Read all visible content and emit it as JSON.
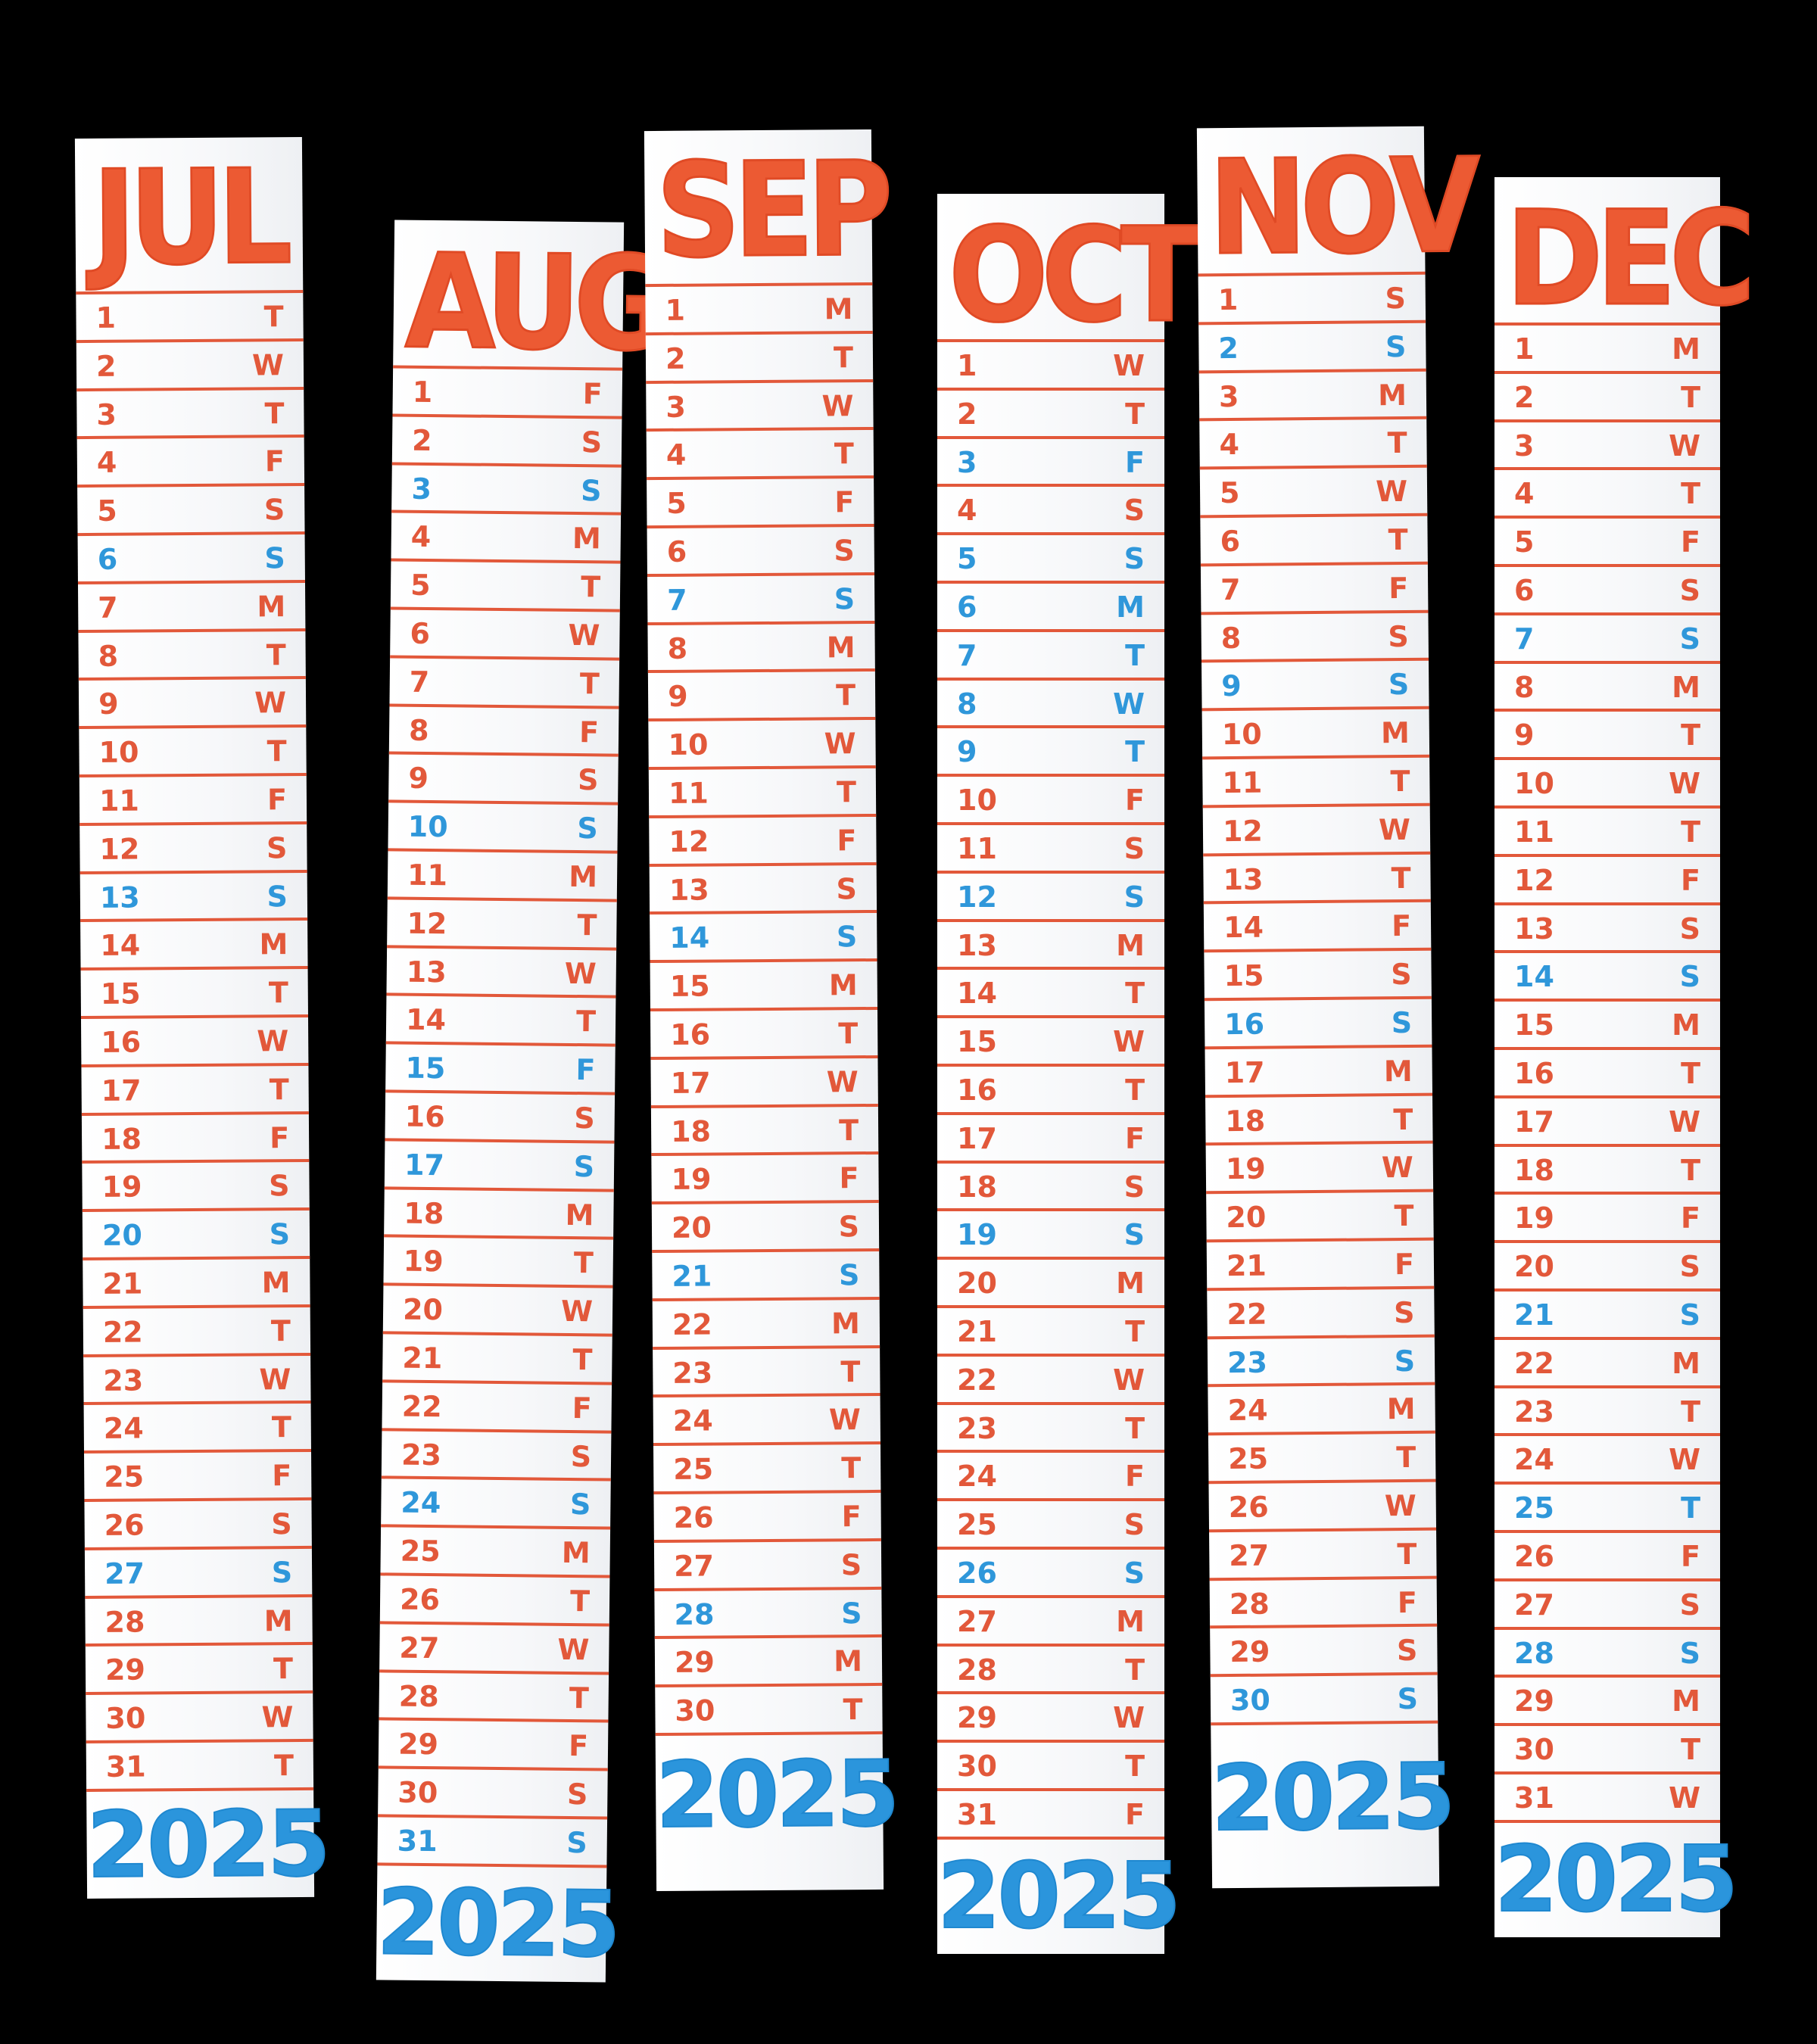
{
  "strips": [
    {
      "month": "JUL",
      "year": "2025",
      "days": [
        {
          "day": "1",
          "dow": "T"
        },
        {
          "day": "2",
          "dow": "W"
        },
        {
          "day": "3",
          "dow": "T"
        },
        {
          "day": "4",
          "dow": "F"
        },
        {
          "day": "5",
          "dow": "S"
        },
        {
          "day": "6",
          "dow": "S"
        },
        {
          "day": "7",
          "dow": "M"
        },
        {
          "day": "8",
          "dow": "T"
        },
        {
          "day": "9",
          "dow": "W"
        },
        {
          "day": "10",
          "dow": "T"
        },
        {
          "day": "11",
          "dow": "F"
        },
        {
          "day": "12",
          "dow": "S"
        },
        {
          "day": "13",
          "dow": "S"
        },
        {
          "day": "14",
          "dow": "M"
        },
        {
          "day": "15",
          "dow": "T"
        },
        {
          "day": "16",
          "dow": "W"
        },
        {
          "day": "17",
          "dow": "T"
        },
        {
          "day": "18",
          "dow": "F"
        },
        {
          "day": "19",
          "dow": "S"
        },
        {
          "day": "20",
          "dow": "S"
        },
        {
          "day": "21",
          "dow": "M"
        },
        {
          "day": "22",
          "dow": "T"
        },
        {
          "day": "23",
          "dow": "W"
        },
        {
          "day": "24",
          "dow": "T"
        },
        {
          "day": "25",
          "dow": "F"
        },
        {
          "day": "26",
          "dow": "S"
        },
        {
          "day": "27",
          "dow": "S"
        },
        {
          "day": "28",
          "dow": "M"
        },
        {
          "day": "29",
          "dow": "T"
        },
        {
          "day": "30",
          "dow": "W"
        },
        {
          "day": "31",
          "dow": "T"
        }
      ],
      "blue_days": [
        "6",
        "13",
        "20",
        "27"
      ]
    },
    {
      "month": "AUG",
      "year": "2025",
      "days": [
        {
          "day": "1",
          "dow": "F"
        },
        {
          "day": "2",
          "dow": "S"
        },
        {
          "day": "3",
          "dow": "S"
        },
        {
          "day": "4",
          "dow": "M"
        },
        {
          "day": "5",
          "dow": "T"
        },
        {
          "day": "6",
          "dow": "W"
        },
        {
          "day": "7",
          "dow": "T"
        },
        {
          "day": "8",
          "dow": "F"
        },
        {
          "day": "9",
          "dow": "S"
        },
        {
          "day": "10",
          "dow": "S"
        },
        {
          "day": "11",
          "dow": "M"
        },
        {
          "day": "12",
          "dow": "T"
        },
        {
          "day": "13",
          "dow": "W"
        },
        {
          "day": "14",
          "dow": "T"
        },
        {
          "day": "15",
          "dow": "F"
        },
        {
          "day": "16",
          "dow": "S"
        },
        {
          "day": "17",
          "dow": "S"
        },
        {
          "day": "18",
          "dow": "M"
        },
        {
          "day": "19",
          "dow": "T"
        },
        {
          "day": "20",
          "dow": "W"
        },
        {
          "day": "21",
          "dow": "T"
        },
        {
          "day": "22",
          "dow": "F"
        },
        {
          "day": "23",
          "dow": "S"
        },
        {
          "day": "24",
          "dow": "S"
        },
        {
          "day": "25",
          "dow": "M"
        },
        {
          "day": "26",
          "dow": "T"
        },
        {
          "day": "27",
          "dow": "W"
        },
        {
          "day": "28",
          "dow": "T"
        },
        {
          "day": "29",
          "dow": "F"
        },
        {
          "day": "30",
          "dow": "S"
        },
        {
          "day": "31",
          "dow": "S"
        }
      ],
      "blue_days": [
        "3",
        "10",
        "15",
        "17",
        "24",
        "31"
      ]
    },
    {
      "month": "SEP",
      "year": "2025",
      "days": [
        {
          "day": "1",
          "dow": "M"
        },
        {
          "day": "2",
          "dow": "T"
        },
        {
          "day": "3",
          "dow": "W"
        },
        {
          "day": "4",
          "dow": "T"
        },
        {
          "day": "5",
          "dow": "F"
        },
        {
          "day": "6",
          "dow": "S"
        },
        {
          "day": "7",
          "dow": "S"
        },
        {
          "day": "8",
          "dow": "M"
        },
        {
          "day": "9",
          "dow": "T"
        },
        {
          "day": "10",
          "dow": "W"
        },
        {
          "day": "11",
          "dow": "T"
        },
        {
          "day": "12",
          "dow": "F"
        },
        {
          "day": "13",
          "dow": "S"
        },
        {
          "day": "14",
          "dow": "S"
        },
        {
          "day": "15",
          "dow": "M"
        },
        {
          "day": "16",
          "dow": "T"
        },
        {
          "day": "17",
          "dow": "W"
        },
        {
          "day": "18",
          "dow": "T"
        },
        {
          "day": "19",
          "dow": "F"
        },
        {
          "day": "20",
          "dow": "S"
        },
        {
          "day": "21",
          "dow": "S"
        },
        {
          "day": "22",
          "dow": "M"
        },
        {
          "day": "23",
          "dow": "T"
        },
        {
          "day": "24",
          "dow": "W"
        },
        {
          "day": "25",
          "dow": "T"
        },
        {
          "day": "26",
          "dow": "F"
        },
        {
          "day": "27",
          "dow": "S"
        },
        {
          "day": "28",
          "dow": "S"
        },
        {
          "day": "29",
          "dow": "M"
        },
        {
          "day": "30",
          "dow": "T"
        }
      ],
      "blue_days": [
        "7",
        "14",
        "21",
        "28"
      ]
    },
    {
      "month": "OCT",
      "year": "2025",
      "days": [
        {
          "day": "1",
          "dow": "W"
        },
        {
          "day": "2",
          "dow": "T"
        },
        {
          "day": "3",
          "dow": "F"
        },
        {
          "day": "4",
          "dow": "S"
        },
        {
          "day": "5",
          "dow": "S"
        },
        {
          "day": "6",
          "dow": "M"
        },
        {
          "day": "7",
          "dow": "T"
        },
        {
          "day": "8",
          "dow": "W"
        },
        {
          "day": "9",
          "dow": "T"
        },
        {
          "day": "10",
          "dow": "F"
        },
        {
          "day": "11",
          "dow": "S"
        },
        {
          "day": "12",
          "dow": "S"
        },
        {
          "day": "13",
          "dow": "M"
        },
        {
          "day": "14",
          "dow": "T"
        },
        {
          "day": "15",
          "dow": "W"
        },
        {
          "day": "16",
          "dow": "T"
        },
        {
          "day": "17",
          "dow": "F"
        },
        {
          "day": "18",
          "dow": "S"
        },
        {
          "day": "19",
          "dow": "S"
        },
        {
          "day": "20",
          "dow": "M"
        },
        {
          "day": "21",
          "dow": "T"
        },
        {
          "day": "22",
          "dow": "W"
        },
        {
          "day": "23",
          "dow": "T"
        },
        {
          "day": "24",
          "dow": "F"
        },
        {
          "day": "25",
          "dow": "S"
        },
        {
          "day": "26",
          "dow": "S"
        },
        {
          "day": "27",
          "dow": "M"
        },
        {
          "day": "28",
          "dow": "T"
        },
        {
          "day": "29",
          "dow": "W"
        },
        {
          "day": "30",
          "dow": "T"
        },
        {
          "day": "31",
          "dow": "F"
        }
      ],
      "blue_days": [
        "3",
        "5",
        "6",
        "7",
        "8",
        "9",
        "12",
        "19",
        "26"
      ]
    },
    {
      "month": "NOV",
      "year": "2025",
      "days": [
        {
          "day": "1",
          "dow": "S"
        },
        {
          "day": "2",
          "dow": "S"
        },
        {
          "day": "3",
          "dow": "M"
        },
        {
          "day": "4",
          "dow": "T"
        },
        {
          "day": "5",
          "dow": "W"
        },
        {
          "day": "6",
          "dow": "T"
        },
        {
          "day": "7",
          "dow": "F"
        },
        {
          "day": "8",
          "dow": "S"
        },
        {
          "day": "9",
          "dow": "S"
        },
        {
          "day": "10",
          "dow": "M"
        },
        {
          "day": "11",
          "dow": "T"
        },
        {
          "day": "12",
          "dow": "W"
        },
        {
          "day": "13",
          "dow": "T"
        },
        {
          "day": "14",
          "dow": "F"
        },
        {
          "day": "15",
          "dow": "S"
        },
        {
          "day": "16",
          "dow": "S"
        },
        {
          "day": "17",
          "dow": "M"
        },
        {
          "day": "18",
          "dow": "T"
        },
        {
          "day": "19",
          "dow": "W"
        },
        {
          "day": "20",
          "dow": "T"
        },
        {
          "day": "21",
          "dow": "F"
        },
        {
          "day": "22",
          "dow": "S"
        },
        {
          "day": "23",
          "dow": "S"
        },
        {
          "day": "24",
          "dow": "M"
        },
        {
          "day": "25",
          "dow": "T"
        },
        {
          "day": "26",
          "dow": "W"
        },
        {
          "day": "27",
          "dow": "T"
        },
        {
          "day": "28",
          "dow": "F"
        },
        {
          "day": "29",
          "dow": "S"
        },
        {
          "day": "30",
          "dow": "S"
        }
      ],
      "blue_days": [
        "2",
        "9",
        "16",
        "23",
        "30"
      ]
    },
    {
      "month": "DEC",
      "year": "2025",
      "days": [
        {
          "day": "1",
          "dow": "M"
        },
        {
          "day": "2",
          "dow": "T"
        },
        {
          "day": "3",
          "dow": "W"
        },
        {
          "day": "4",
          "dow": "T"
        },
        {
          "day": "5",
          "dow": "F"
        },
        {
          "day": "6",
          "dow": "S"
        },
        {
          "day": "7",
          "dow": "S"
        },
        {
          "day": "8",
          "dow": "M"
        },
        {
          "day": "9",
          "dow": "T"
        },
        {
          "day": "10",
          "dow": "W"
        },
        {
          "day": "11",
          "dow": "T"
        },
        {
          "day": "12",
          "dow": "F"
        },
        {
          "day": "13",
          "dow": "S"
        },
        {
          "day": "14",
          "dow": "S"
        },
        {
          "day": "15",
          "dow": "M"
        },
        {
          "day": "16",
          "dow": "T"
        },
        {
          "day": "17",
          "dow": "W"
        },
        {
          "day": "18",
          "dow": "T"
        },
        {
          "day": "19",
          "dow": "F"
        },
        {
          "day": "20",
          "dow": "S"
        },
        {
          "day": "21",
          "dow": "S"
        },
        {
          "day": "22",
          "dow": "M"
        },
        {
          "day": "23",
          "dow": "T"
        },
        {
          "day": "24",
          "dow": "W"
        },
        {
          "day": "25",
          "dow": "T"
        },
        {
          "day": "26",
          "dow": "F"
        },
        {
          "day": "27",
          "dow": "S"
        },
        {
          "day": "28",
          "dow": "S"
        },
        {
          "day": "29",
          "dow": "M"
        },
        {
          "day": "30",
          "dow": "T"
        },
        {
          "day": "31",
          "dow": "W"
        }
      ],
      "blue_days": [
        "7",
        "14",
        "21",
        "25",
        "28"
      ]
    }
  ],
  "colors": {
    "background": "#000000",
    "paper": "#ffffff",
    "month_red": "#ec5a33",
    "weekday_red": "#e2583a",
    "weekend_blue": "#2f97da",
    "year_blue": "#2b95dc"
  }
}
